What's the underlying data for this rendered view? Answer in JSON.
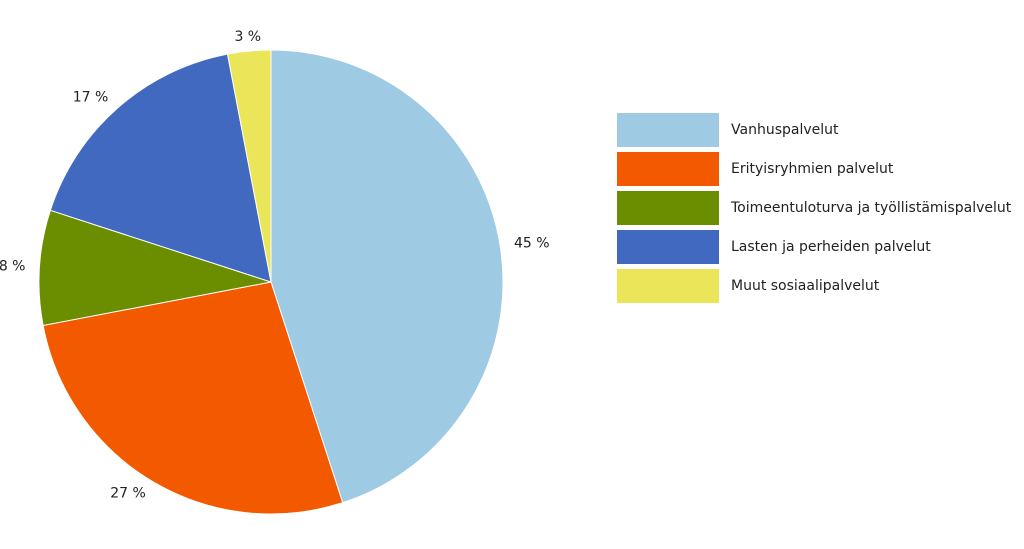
{
  "chart_data": {
    "type": "pie",
    "title": "",
    "legend_position": "right",
    "start_angle_deg": 0,
    "direction": "clockwise",
    "categories": [
      "Vanhuspalvelut",
      "Erityisryhmien palvelut",
      "Toimeentuloturva ja työllistämispalvelut",
      "Lasten ja perheiden palvelut",
      "Muut sosiaalipalvelut"
    ],
    "values": [
      45,
      27,
      8,
      17,
      3
    ],
    "value_labels": [
      "45 %",
      "27 %",
      "8 %",
      "17 %",
      "3 %"
    ],
    "colors": [
      "#9ECAE3",
      "#F35A00",
      "#6A8E00",
      "#4169BF",
      "#EBE55A"
    ]
  }
}
